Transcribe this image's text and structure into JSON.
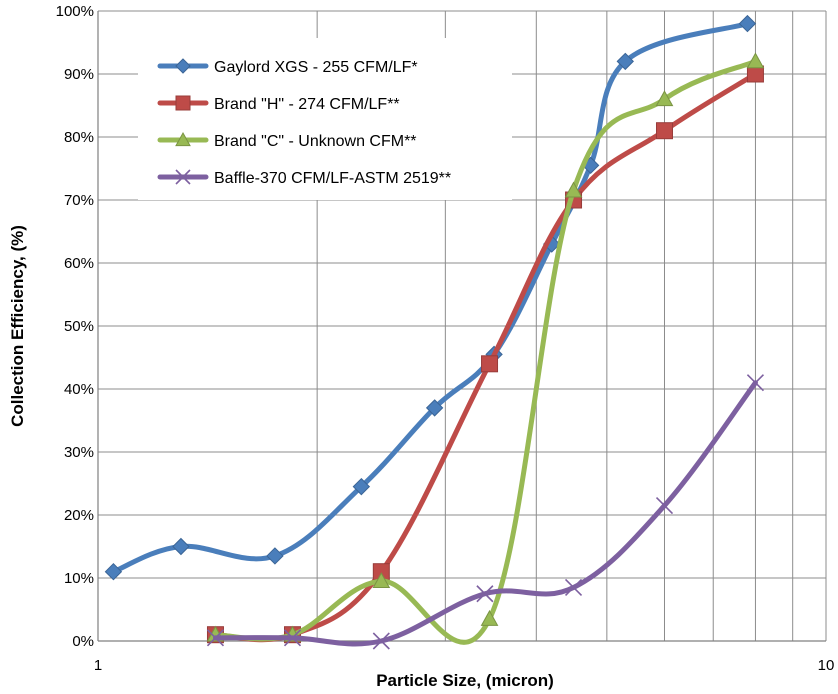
{
  "chart_data": {
    "type": "line",
    "xlabel": "Particle Size, (micron)",
    "ylabel": "Collection Efficiency, (%)",
    "xscale": "log",
    "xlim": [
      1,
      10
    ],
    "ylim": [
      0,
      100
    ],
    "x_ticks": [
      "1",
      "10"
    ],
    "y_ticks": [
      "0%",
      "10%",
      "20%",
      "30%",
      "40%",
      "50%",
      "60%",
      "70%",
      "80%",
      "90%",
      "100%"
    ],
    "grid": true,
    "legend_position": "top-left",
    "series": [
      {
        "name": "Gaylord XGS - 255 CFM/LF*",
        "color": "#4a7ebb",
        "marker": "diamond",
        "x": [
          1.05,
          1.3,
          1.75,
          2.3,
          2.9,
          3.5,
          4.2,
          4.75,
          5.3,
          7.8
        ],
        "y": [
          11,
          15,
          13.5,
          24.5,
          37,
          45.5,
          63,
          75.5,
          92,
          98
        ]
      },
      {
        "name": "Brand \"H\" - 274 CFM/LF**",
        "color": "#be4b48",
        "marker": "square",
        "x": [
          1.45,
          1.85,
          2.45,
          3.45,
          4.5,
          6.0,
          8.0
        ],
        "y": [
          1,
          1,
          11,
          44,
          70,
          81,
          90
        ]
      },
      {
        "name": "Brand \"C\" - Unknown CFM**",
        "color": "#98b954",
        "marker": "triangle",
        "x": [
          1.45,
          1.85,
          2.45,
          3.45,
          4.5,
          6.0,
          8.0
        ],
        "y": [
          1,
          1,
          9.5,
          3.5,
          71.5,
          86,
          92
        ]
      },
      {
        "name": "Baffle-370 CFM/LF-ASTM 2519**",
        "color": "#7d60a0",
        "marker": "x",
        "x": [
          1.45,
          1.85,
          2.45,
          3.4,
          4.5,
          6.0,
          8.0
        ],
        "y": [
          0.5,
          0.5,
          0,
          7.5,
          8.5,
          21.5,
          41
        ]
      }
    ]
  }
}
